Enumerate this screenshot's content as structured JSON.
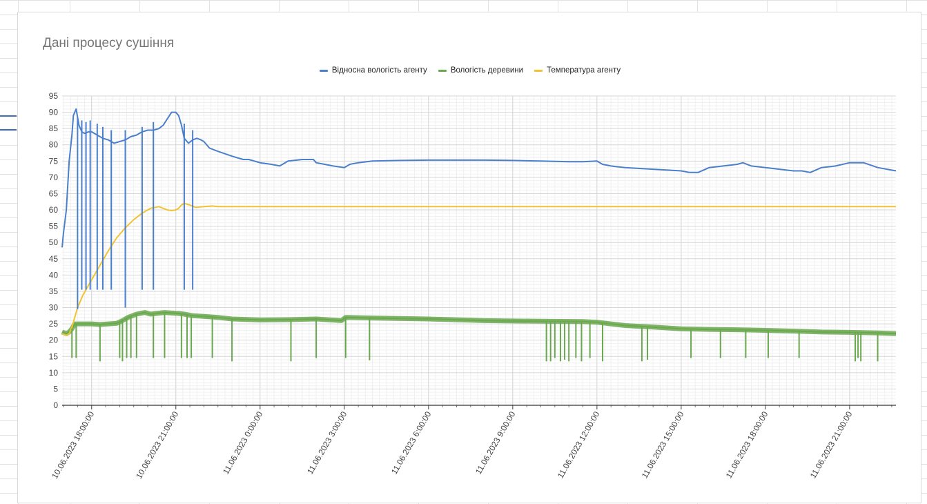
{
  "chart_data": {
    "type": "line",
    "title": "Дані процесу сушіння",
    "ylim": [
      0,
      95
    ],
    "yticks": [
      0,
      5,
      10,
      15,
      20,
      25,
      30,
      35,
      40,
      45,
      50,
      55,
      60,
      65,
      70,
      75,
      80,
      85,
      90,
      95
    ],
    "xlim_hours": [
      16.95,
      46.65
    ],
    "x_tick_labels": [
      {
        "hour": 18,
        "label": "10.06.2023 18:00:00"
      },
      {
        "hour": 21,
        "label": "10.06.2023 21:00:00"
      },
      {
        "hour": 24,
        "label": "11.06.2023 0:00:00"
      },
      {
        "hour": 27,
        "label": "11.06.2023 3:00:00"
      },
      {
        "hour": 30,
        "label": "11.06.2023 6:00:00"
      },
      {
        "hour": 33,
        "label": "11.06.2023 9:00:00"
      },
      {
        "hour": 36,
        "label": "11.06.2023 12:00:00"
      },
      {
        "hour": 39,
        "label": "11.06.2023 15:00:00"
      },
      {
        "hour": 42,
        "label": "11.06.2023 18:00:00"
      },
      {
        "hour": 45,
        "label": "11.06.2023 21:00:00"
      }
    ],
    "legend_position": "top",
    "grid": true,
    "series": [
      {
        "name": "Відносна вологість агенту",
        "color": "#4a7fcb",
        "x": [
          16.95,
          17.0,
          17.1,
          17.2,
          17.3,
          17.35,
          17.45,
          17.55,
          17.65,
          17.75,
          17.9,
          18.0,
          18.2,
          18.4,
          18.6,
          18.8,
          19.0,
          19.2,
          19.4,
          19.6,
          19.8,
          20.0,
          20.2,
          20.4,
          20.55,
          20.7,
          20.85,
          21.0,
          21.1,
          21.2,
          21.3,
          21.45,
          21.6,
          21.75,
          21.9,
          22.0,
          22.2,
          22.5,
          23.0,
          23.4,
          23.6,
          24.0,
          24.4,
          24.7,
          25.0,
          25.5,
          25.9,
          26.0,
          26.3,
          26.6,
          27.0,
          27.2,
          27.5,
          28.0,
          29.0,
          30.0,
          31.0,
          32.0,
          33.0,
          34.0,
          35.0,
          35.5,
          36.0,
          36.2,
          36.5,
          37.0,
          38.0,
          39.0,
          39.3,
          39.6,
          40.0,
          40.5,
          41.0,
          41.2,
          41.5,
          42.0,
          42.5,
          43.0,
          43.3,
          43.6,
          44.0,
          44.5,
          45.0,
          45.2,
          45.5,
          46.0,
          46.65
        ],
        "values": [
          48.5,
          53,
          60,
          75,
          83,
          89,
          91,
          86,
          84,
          83.5,
          84,
          84,
          83,
          82,
          81.5,
          80.5,
          81,
          81.5,
          82.5,
          83,
          84,
          84.5,
          84.5,
          85,
          86,
          88,
          90,
          90,
          89,
          86,
          82,
          80.5,
          81.5,
          82,
          81.5,
          81,
          79,
          78,
          76.5,
          75.5,
          75.5,
          74.5,
          74,
          73.5,
          75,
          75.5,
          75.5,
          74.5,
          74,
          73.5,
          73,
          74,
          74.5,
          75,
          75.2,
          75.3,
          75.3,
          75.3,
          75.2,
          75,
          74.8,
          74.8,
          75,
          74,
          73.5,
          73,
          72.5,
          72,
          71.5,
          71.5,
          73,
          73.5,
          74,
          74.5,
          73.5,
          73,
          72.5,
          72,
          72,
          71.5,
          73,
          73.5,
          74.5,
          74.5,
          74.5,
          73,
          72
        ]
      },
      {
        "name": "Вологість деревини",
        "color": "#6aa84f",
        "x": [
          16.95,
          17.1,
          17.2,
          17.3,
          17.4,
          17.5,
          17.7,
          18.0,
          18.3,
          18.6,
          18.9,
          19.1,
          19.3,
          19.6,
          19.9,
          20.1,
          20.3,
          20.6,
          20.9,
          21.1,
          21.3,
          21.6,
          22.0,
          22.5,
          23.0,
          24.0,
          25.0,
          26.0,
          26.9,
          27.05,
          28.0,
          30.0,
          32.0,
          34.0,
          35.5,
          36.0,
          36.5,
          37.0,
          38.0,
          39.0,
          40.0,
          41.0,
          42.0,
          43.0,
          44.0,
          45.0,
          46.0,
          46.65
        ],
        "values": [
          22.5,
          22,
          22.5,
          23.5,
          25,
          25,
          25,
          25,
          24.8,
          25,
          25.2,
          26,
          27,
          28,
          28.5,
          28,
          28.2,
          28.5,
          28.3,
          28.2,
          28,
          27.5,
          27.3,
          27,
          26.5,
          26.2,
          26.3,
          26.5,
          26,
          27,
          26.8,
          26.5,
          26,
          25.8,
          25.7,
          25.5,
          25,
          24.5,
          24,
          23.5,
          23.3,
          23.2,
          23,
          22.8,
          22.5,
          22.4,
          22.2,
          22
        ]
      },
      {
        "name": "Температура агенту",
        "color": "#f1c232",
        "x": [
          16.95,
          17.1,
          17.2,
          17.3,
          17.5,
          17.7,
          18.0,
          18.3,
          18.6,
          18.9,
          19.2,
          19.5,
          19.8,
          20.1,
          20.4,
          20.55,
          20.7,
          20.85,
          21.0,
          21.1,
          21.2,
          21.3,
          21.5,
          21.7,
          22.0,
          22.3,
          22.5,
          23.0,
          24.0,
          27.0,
          30.0,
          33.0,
          36.0,
          39.0,
          42.0,
          45.0,
          46.65
        ],
        "values": [
          22,
          21.5,
          22,
          24,
          30,
          34,
          38.5,
          43,
          47.5,
          51.5,
          54.5,
          57,
          59,
          60.5,
          61,
          60.5,
          60,
          59.8,
          60,
          60.5,
          61.5,
          62,
          61.5,
          60.8,
          61,
          61.2,
          61,
          61,
          61,
          61,
          61,
          61,
          61,
          61,
          61,
          61,
          61
        ]
      }
    ],
    "spikes": [
      {
        "series": 0,
        "hour": 17.5,
        "to": 29.5
      },
      {
        "series": 0,
        "hour": 17.65,
        "to": 35.5,
        "top": 87.5
      },
      {
        "series": 0,
        "hour": 17.8,
        "to": 35.5,
        "top": 87
      },
      {
        "series": 0,
        "hour": 17.95,
        "to": 35.5,
        "top": 87.5
      },
      {
        "series": 0,
        "hour": 18.2,
        "to": 35.5,
        "top": 86.5
      },
      {
        "series": 0,
        "hour": 18.4,
        "to": 35.5,
        "top": 85.5
      },
      {
        "series": 0,
        "hour": 18.7,
        "to": 35.5,
        "top": 84.5
      },
      {
        "series": 0,
        "hour": 19.2,
        "to": 30.0,
        "top": 84.5
      },
      {
        "series": 0,
        "hour": 19.8,
        "to": 35.5,
        "top": 85.5
      },
      {
        "series": 0,
        "hour": 20.2,
        "to": 35.5,
        "top": 87
      },
      {
        "series": 0,
        "hour": 21.3,
        "to": 35.5,
        "top": 86.5
      },
      {
        "series": 0,
        "hour": 21.6,
        "to": 35.5,
        "top": 84.5
      },
      {
        "series": 1,
        "hour": 17.3,
        "to": 14.5
      },
      {
        "series": 1,
        "hour": 17.45,
        "to": 14.5
      },
      {
        "series": 1,
        "hour": 18.3,
        "to": 13.5
      },
      {
        "series": 1,
        "hour": 19.0,
        "to": 14.5
      },
      {
        "series": 1,
        "hour": 19.1,
        "to": 13.5
      },
      {
        "series": 1,
        "hour": 19.25,
        "to": 14.5
      },
      {
        "series": 1,
        "hour": 19.4,
        "to": 14.5
      },
      {
        "series": 1,
        "hour": 19.6,
        "to": 14.5
      },
      {
        "series": 1,
        "hour": 20.2,
        "to": 14.5
      },
      {
        "series": 1,
        "hour": 20.6,
        "to": 14.5
      },
      {
        "series": 1,
        "hour": 21.2,
        "to": 14.5
      },
      {
        "series": 1,
        "hour": 21.4,
        "to": 14.5
      },
      {
        "series": 1,
        "hour": 21.55,
        "to": 14.5
      },
      {
        "series": 1,
        "hour": 22.3,
        "to": 14.5
      },
      {
        "series": 1,
        "hour": 23.0,
        "to": 13.5
      },
      {
        "series": 1,
        "hour": 25.1,
        "to": 13.5
      },
      {
        "series": 1,
        "hour": 26.0,
        "to": 14.5
      },
      {
        "series": 1,
        "hour": 27.05,
        "to": 14.5
      },
      {
        "series": 1,
        "hour": 27.9,
        "to": 13.8
      },
      {
        "series": 1,
        "hour": 34.2,
        "to": 13.5
      },
      {
        "series": 1,
        "hour": 34.35,
        "to": 13.5
      },
      {
        "series": 1,
        "hour": 34.5,
        "to": 14.5
      },
      {
        "series": 1,
        "hour": 34.7,
        "to": 13.5
      },
      {
        "series": 1,
        "hour": 34.85,
        "to": 14.0
      },
      {
        "series": 1,
        "hour": 35.0,
        "to": 13.5
      },
      {
        "series": 1,
        "hour": 35.25,
        "to": 14.5
      },
      {
        "series": 1,
        "hour": 35.45,
        "to": 13.5
      },
      {
        "series": 1,
        "hour": 35.75,
        "to": 14.5
      },
      {
        "series": 1,
        "hour": 36.2,
        "to": 13.5
      },
      {
        "series": 1,
        "hour": 37.6,
        "to": 13.5
      },
      {
        "series": 1,
        "hour": 37.8,
        "to": 14.0
      },
      {
        "series": 1,
        "hour": 39.35,
        "to": 14.5
      },
      {
        "series": 1,
        "hour": 40.4,
        "to": 14.5
      },
      {
        "series": 1,
        "hour": 41.3,
        "to": 14.5
      },
      {
        "series": 1,
        "hour": 42.1,
        "to": 14.5
      },
      {
        "series": 1,
        "hour": 43.2,
        "to": 14.5
      },
      {
        "series": 1,
        "hour": 45.2,
        "to": 13.5
      },
      {
        "series": 1,
        "hour": 45.3,
        "to": 14.5
      },
      {
        "series": 1,
        "hour": 45.4,
        "to": 13.5
      },
      {
        "series": 1,
        "hour": 46.0,
        "to": 13.5
      }
    ]
  }
}
